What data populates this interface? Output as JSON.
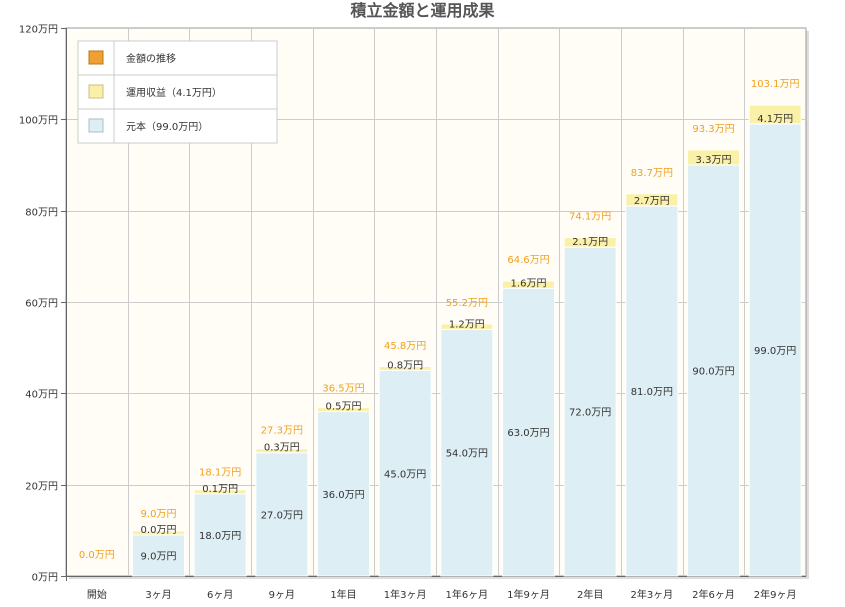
{
  "chart_data": {
    "type": "bar",
    "title": "積立金額と運用成果",
    "categories": [
      "開始",
      "3ヶ月",
      "6ヶ月",
      "9ヶ月",
      "1年目",
      "1年3ヶ月",
      "1年6ヶ月",
      "1年9ヶ月",
      "2年目",
      "2年3ヶ月",
      "2年6ヶ月",
      "2年9ヶ月"
    ],
    "series": [
      {
        "name": "元本（99.0万円）",
        "color": "#ddeef5",
        "values": [
          0.0,
          9.0,
          18.0,
          27.0,
          36.0,
          45.0,
          54.0,
          63.0,
          72.0,
          81.0,
          90.0,
          99.0
        ],
        "labels": [
          "",
          "9.0万円",
          "18.0万円",
          "27.0万円",
          "36.0万円",
          "45.0万円",
          "54.0万円",
          "63.0万円",
          "72.0万円",
          "81.0万円",
          "90.0万円",
          "99.0万円"
        ]
      },
      {
        "name": "運用収益（4.1万円）",
        "color": "#fbf0a8",
        "values": [
          0.0,
          0.0,
          0.1,
          0.3,
          0.5,
          0.8,
          1.2,
          1.6,
          2.1,
          2.7,
          3.3,
          4.1
        ],
        "labels": [
          "",
          "0.0万円",
          "0.1万円",
          "0.3万円",
          "0.5万円",
          "0.8万円",
          "1.2万円",
          "1.6万円",
          "2.1万円",
          "2.7万円",
          "3.3万円",
          "4.1万円"
        ]
      }
    ],
    "totals": {
      "name": "金額の推移",
      "color": "#f0a030",
      "values": [
        0.0,
        9.0,
        18.1,
        27.3,
        36.5,
        45.8,
        55.2,
        64.6,
        74.1,
        83.7,
        93.3,
        103.1
      ],
      "labels": [
        "0.0万円",
        "9.0万円",
        "18.1万円",
        "27.3万円",
        "36.5万円",
        "45.8万円",
        "55.2万円",
        "64.6万円",
        "74.1万円",
        "83.7万円",
        "93.3万円",
        "103.1万円"
      ]
    },
    "ylim": [
      0,
      120
    ],
    "yticks": [
      0,
      20,
      40,
      60,
      80,
      100,
      120
    ],
    "ytick_labels": [
      "0万円",
      "20万円",
      "40万円",
      "60万円",
      "80万円",
      "100万円",
      "120万円"
    ],
    "grid": true,
    "legend_position": "top-left",
    "legend_order": [
      "totals",
      "1",
      "0"
    ]
  }
}
